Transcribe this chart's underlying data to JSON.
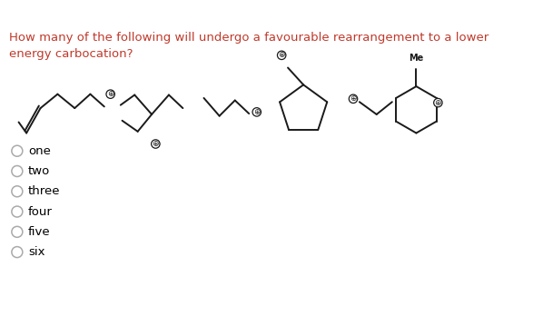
{
  "title": "How many of the following will undergo a favourable rearrangement to a lower\nenergy carbocation?",
  "title_color": "#c0392b",
  "options": [
    "one",
    "two",
    "three",
    "four",
    "five",
    "six"
  ],
  "bg_color": "#ffffff",
  "text_color": "#000000",
  "line_color": "#1a1a1a",
  "title_fontsize": 9.5,
  "option_fontsize": 9.5
}
